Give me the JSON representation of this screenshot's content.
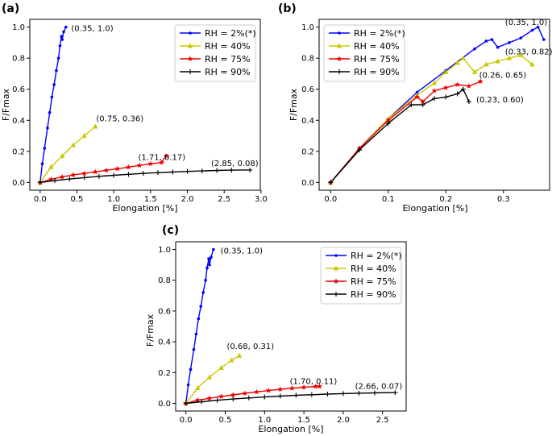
{
  "panels": [
    {
      "id": "a",
      "panel_label": "(a)",
      "xlabel": "Elongation [%]",
      "ylabel": "F/Fmax",
      "xlim": [
        -0.14,
        2.99
      ],
      "ylim": [
        -0.05,
        1.05
      ],
      "xticks": [
        0.0,
        0.5,
        1.0,
        1.5,
        2.0,
        2.5,
        3.0
      ],
      "xtick_labels": [
        "0.0",
        "0.5",
        "1.0",
        "1.5",
        "2.0",
        "2.5",
        "3.0"
      ],
      "yticks": [
        0.0,
        0.2,
        0.4,
        0.6,
        0.8,
        1.0
      ],
      "ytick_labels": [
        "0.0",
        "0.2",
        "0.4",
        "0.6",
        "0.8",
        "1.0"
      ],
      "legend_position": "top-right",
      "series": [
        {
          "name": "RH = 2%(*)",
          "color": "#0000ff",
          "marker": "dot",
          "x": [
            0,
            0.03,
            0.06,
            0.1,
            0.13,
            0.16,
            0.19,
            0.22,
            0.25,
            0.27,
            0.29,
            0.3,
            0.32,
            0.35
          ],
          "y": [
            0,
            0.12,
            0.22,
            0.35,
            0.45,
            0.55,
            0.63,
            0.72,
            0.8,
            0.88,
            0.94,
            0.92,
            0.97,
            1.0
          ]
        },
        {
          "name": "RH = 40%",
          "color": "#c8c800",
          "marker": "triangle",
          "x": [
            0,
            0.15,
            0.3,
            0.45,
            0.6,
            0.75
          ],
          "y": [
            0,
            0.1,
            0.17,
            0.24,
            0.3,
            0.36
          ]
        },
        {
          "name": "RH = 75%",
          "color": "#ee0000",
          "marker": "star",
          "x": [
            0,
            0.15,
            0.3,
            0.45,
            0.6,
            0.75,
            0.9,
            1.05,
            1.2,
            1.35,
            1.5,
            1.65,
            1.71
          ],
          "y": [
            0,
            0.02,
            0.035,
            0.048,
            0.058,
            0.068,
            0.078,
            0.088,
            0.098,
            0.11,
            0.12,
            0.128,
            0.17
          ]
        },
        {
          "name": "RH = 90%",
          "color": "#000000",
          "marker": "plus",
          "x": [
            0,
            0.2,
            0.4,
            0.6,
            0.8,
            1.0,
            1.2,
            1.4,
            1.6,
            1.8,
            2.0,
            2.2,
            2.4,
            2.6,
            2.85
          ],
          "y": [
            0,
            0.012,
            0.022,
            0.031,
            0.039,
            0.046,
            0.052,
            0.058,
            0.063,
            0.067,
            0.071,
            0.074,
            0.077,
            0.079,
            0.08
          ]
        }
      ],
      "annotations": [
        {
          "text": "(0.35, 1.0)",
          "x": 0.4,
          "y": 0.99
        },
        {
          "text": "(0.75, 0.36)",
          "x": 0.74,
          "y": 0.41
        },
        {
          "text": "(1.71, 0.17)",
          "x": 1.31,
          "y": 0.16
        },
        {
          "text": "(2.85, 0.08)",
          "x": 2.3,
          "y": 0.12
        }
      ]
    },
    {
      "id": "b",
      "panel_label": "(b)",
      "xlabel": "Elongation [%]",
      "ylabel": "F/Fmax",
      "xlim": [
        -0.02,
        0.38
      ],
      "ylim": [
        -0.05,
        1.05
      ],
      "xticks": [
        0.0,
        0.1,
        0.2,
        0.3
      ],
      "xtick_labels": [
        "0.0",
        "0.1",
        "0.2",
        "0.3"
      ],
      "yticks": [
        0.0,
        0.2,
        0.4,
        0.6,
        0.8,
        1.0
      ],
      "ytick_labels": [
        "0.0",
        "0.2",
        "0.4",
        "0.6",
        "0.8",
        "1.0"
      ],
      "legend_position": "top-left",
      "series": [
        {
          "name": "RH = 2%(*)",
          "color": "#0000ff",
          "marker": "dot",
          "x": [
            0,
            0.05,
            0.1,
            0.15,
            0.2,
            0.25,
            0.27,
            0.28,
            0.29,
            0.31,
            0.33,
            0.35,
            0.36,
            0.37
          ],
          "y": [
            0,
            0.22,
            0.41,
            0.58,
            0.72,
            0.86,
            0.91,
            0.92,
            0.87,
            0.9,
            0.93,
            0.98,
            1.0,
            0.92
          ]
        },
        {
          "name": "RH = 40%",
          "color": "#c8c800",
          "marker": "triangle",
          "x": [
            0,
            0.05,
            0.1,
            0.15,
            0.18,
            0.2,
            0.22,
            0.23,
            0.25,
            0.27,
            0.29,
            0.31,
            0.33,
            0.35
          ],
          "y": [
            0,
            0.22,
            0.41,
            0.56,
            0.64,
            0.71,
            0.77,
            0.8,
            0.71,
            0.76,
            0.78,
            0.8,
            0.82,
            0.76
          ]
        },
        {
          "name": "RH = 75%",
          "color": "#ee0000",
          "marker": "star",
          "x": [
            0,
            0.05,
            0.1,
            0.15,
            0.16,
            0.18,
            0.2,
            0.22,
            0.24,
            0.26
          ],
          "y": [
            0,
            0.22,
            0.4,
            0.55,
            0.52,
            0.59,
            0.61,
            0.63,
            0.62,
            0.65
          ]
        },
        {
          "name": "RH = 90%",
          "color": "#000000",
          "marker": "plus",
          "x": [
            0,
            0.05,
            0.1,
            0.14,
            0.16,
            0.18,
            0.2,
            0.22,
            0.23,
            0.24
          ],
          "y": [
            0,
            0.21,
            0.38,
            0.5,
            0.5,
            0.54,
            0.55,
            0.57,
            0.6,
            0.52
          ]
        }
      ],
      "annotations": [
        {
          "text": "(0.35, 1.0)",
          "x": 0.3,
          "y": 1.03
        },
        {
          "text": "(0.33, 0.82)",
          "x": 0.3,
          "y": 0.84
        },
        {
          "text": "(0.26, 0.65)",
          "x": 0.255,
          "y": 0.69
        },
        {
          "text": "(0.23, 0.60)",
          "x": 0.25,
          "y": 0.53
        }
      ]
    },
    {
      "id": "c",
      "panel_label": "(c)",
      "xlabel": "Elongation [%]",
      "ylabel": "F/Fmax",
      "xlim": [
        -0.13,
        2.8
      ],
      "ylim": [
        -0.05,
        1.05
      ],
      "xticks": [
        0.0,
        0.5,
        1.0,
        1.5,
        2.0,
        2.5
      ],
      "xtick_labels": [
        "0.0",
        "0.5",
        "1.0",
        "1.5",
        "2.0",
        "2.5"
      ],
      "yticks": [
        0.0,
        0.2,
        0.4,
        0.6,
        0.8,
        1.0
      ],
      "ytick_labels": [
        "0.0",
        "0.2",
        "0.4",
        "0.6",
        "0.8",
        "1.0"
      ],
      "legend_position": "top-right",
      "series": [
        {
          "name": "RH = 2%(*)",
          "color": "#0000ff",
          "marker": "dot",
          "x": [
            0,
            0.03,
            0.06,
            0.1,
            0.13,
            0.16,
            0.19,
            0.22,
            0.25,
            0.27,
            0.29,
            0.3,
            0.32,
            0.35
          ],
          "y": [
            0,
            0.12,
            0.22,
            0.35,
            0.45,
            0.55,
            0.63,
            0.72,
            0.8,
            0.88,
            0.94,
            0.9,
            0.95,
            1.0
          ]
        },
        {
          "name": "RH = 40%",
          "color": "#c8c800",
          "marker": "triangle",
          "x": [
            0,
            0.15,
            0.3,
            0.45,
            0.58,
            0.68
          ],
          "y": [
            0,
            0.1,
            0.17,
            0.23,
            0.28,
            0.31
          ]
        },
        {
          "name": "RH = 75%",
          "color": "#ee0000",
          "marker": "star",
          "x": [
            0,
            0.15,
            0.3,
            0.45,
            0.6,
            0.75,
            0.9,
            1.05,
            1.2,
            1.35,
            1.5,
            1.65,
            1.7
          ],
          "y": [
            0,
            0.02,
            0.033,
            0.045,
            0.055,
            0.065,
            0.074,
            0.083,
            0.091,
            0.098,
            0.104,
            0.11,
            0.11
          ]
        },
        {
          "name": "RH = 90%",
          "color": "#000000",
          "marker": "plus",
          "x": [
            0,
            0.2,
            0.4,
            0.6,
            0.8,
            1.0,
            1.2,
            1.4,
            1.6,
            1.8,
            2.0,
            2.2,
            2.4,
            2.66
          ],
          "y": [
            0,
            0.01,
            0.02,
            0.028,
            0.035,
            0.041,
            0.047,
            0.052,
            0.056,
            0.06,
            0.063,
            0.066,
            0.068,
            0.07
          ]
        }
      ],
      "annotations": [
        {
          "text": "(0.35, 1.0)",
          "x": 0.42,
          "y": 0.99
        },
        {
          "text": "(0.68, 0.31)",
          "x": 0.5,
          "y": 0.37
        },
        {
          "text": "(1.70, 0.11)",
          "x": 1.3,
          "y": 0.14
        },
        {
          "text": "(2.66, 0.07)",
          "x": 2.13,
          "y": 0.11
        }
      ]
    }
  ],
  "chart_data": [
    {
      "type": "line",
      "title": "(a)",
      "xlabel": "Elongation [%]",
      "ylabel": "F/Fmax",
      "legend": [
        "RH = 2%(*)",
        "RH = 40%",
        "RH = 75%",
        "RH = 90%"
      ],
      "peaks": [
        [
          0.35,
          1.0
        ],
        [
          0.75,
          0.36
        ],
        [
          1.71,
          0.17
        ],
        [
          2.85,
          0.08
        ]
      ]
    },
    {
      "type": "line",
      "title": "(b)",
      "xlabel": "Elongation [%]",
      "ylabel": "F/Fmax",
      "legend": [
        "RH = 2%(*)",
        "RH = 40%",
        "RH = 75%",
        "RH = 90%"
      ],
      "peaks": [
        [
          0.35,
          1.0
        ],
        [
          0.33,
          0.82
        ],
        [
          0.26,
          0.65
        ],
        [
          0.23,
          0.6
        ]
      ]
    },
    {
      "type": "line",
      "title": "(c)",
      "xlabel": "Elongation [%]",
      "ylabel": "F/Fmax",
      "legend": [
        "RH = 2%(*)",
        "RH = 40%",
        "RH = 75%",
        "RH = 90%"
      ],
      "peaks": [
        [
          0.35,
          1.0
        ],
        [
          0.68,
          0.31
        ],
        [
          1.7,
          0.11
        ],
        [
          2.66,
          0.07
        ]
      ]
    }
  ]
}
